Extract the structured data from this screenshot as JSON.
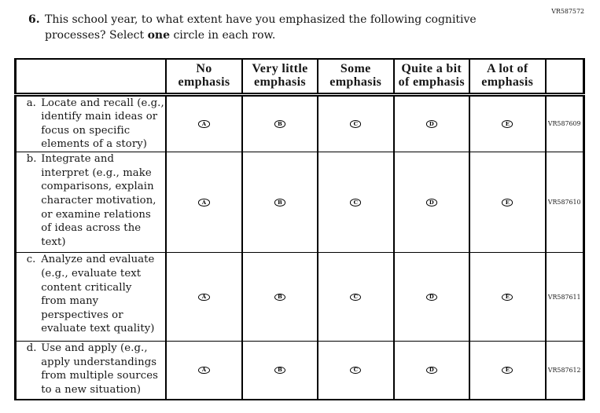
{
  "page": {
    "code_top_right": "VR587572",
    "background": "#ffffff",
    "text_color": "#161616",
    "border_color": "#000000"
  },
  "question": {
    "number": "6.",
    "line1": "This school year, to what extent have you emphasized the following cognitive",
    "line2_pre": "processes? Select ",
    "line2_bold": "one",
    "line2_post": " circle in each row."
  },
  "table": {
    "header_columns": [
      {
        "lines": [
          "No",
          "emphasis"
        ]
      },
      {
        "lines": [
          "Very little",
          "emphasis"
        ]
      },
      {
        "lines": [
          "Some",
          "emphasis"
        ]
      },
      {
        "lines": [
          "Quite a bit",
          "of emphasis"
        ]
      },
      {
        "lines": [
          "A lot of",
          "emphasis"
        ]
      }
    ],
    "bubble_letters": [
      "A",
      "B",
      "C",
      "D",
      "E"
    ],
    "rows": [
      {
        "marker": "a.",
        "lines": [
          "Locate and recall (e.g.,",
          "identify main ideas or",
          "focus on specific",
          "elements of a story)"
        ],
        "code": "VR587609"
      },
      {
        "marker": "b.",
        "lines": [
          "Integrate and",
          "interpret (e.g., make",
          "comparisons, explain",
          "character motivation,",
          "or examine relations",
          "of ideas across the",
          "text)"
        ],
        "code": "VR587610"
      },
      {
        "marker": "c.",
        "lines": [
          "Analyze and evaluate",
          "(e.g., evaluate text",
          "content critically",
          "from many",
          "perspectives or",
          "evaluate text quality)"
        ],
        "code": "VR587611"
      },
      {
        "marker": "d.",
        "lines": [
          "Use and apply (e.g.,",
          "apply understandings",
          "from multiple sources",
          "to a new situation)"
        ],
        "code": "VR587612"
      }
    ]
  }
}
